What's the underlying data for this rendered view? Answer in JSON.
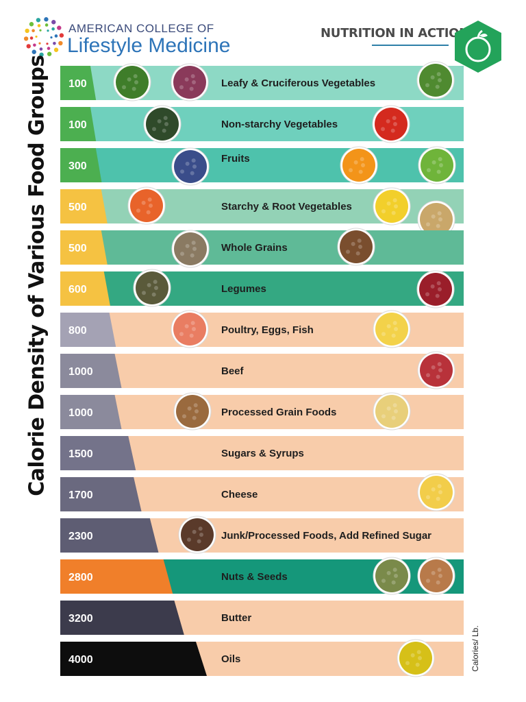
{
  "header": {
    "org_line1": "AMERICAN COLLEGE OF",
    "org_line2": "Lifestyle Medicine",
    "section_title": "NUTRITION IN ACTION",
    "badge_icon": "apple-icon",
    "logo_icon": "dotted-circle-logo"
  },
  "chart_data": {
    "type": "bar",
    "title": "Calorie Density of Various Food Groups",
    "unit_label": "Calories/ Lb.",
    "categories": [
      "Leafy & Cruciferous Vegetables",
      "Non-starchy Vegetables",
      "Fruits",
      "Starchy & Root Vegetables",
      "Whole Grains",
      "Legumes",
      "Poultry, Eggs, Fish",
      "Beef",
      "Processed Grain Foods",
      "Sugars & Syrups",
      "Cheese",
      "Junk/Processed Foods, Add Refined Sugar",
      "Nuts & Seeds",
      "Butter",
      "Oils"
    ],
    "values": [
      100,
      100,
      300,
      500,
      500,
      600,
      800,
      1000,
      1000,
      1500,
      1700,
      2300,
      2800,
      3200,
      4000
    ],
    "value_colors": [
      "#4caf50",
      "#4caf50",
      "#4caf50",
      "#f5c242",
      "#f5c242",
      "#f5c242",
      "#a4a2b4",
      "#8b8a9c",
      "#8b8a9c",
      "#74738a",
      "#6a697f",
      "#5e5d73",
      "#f07f2a",
      "#3c3b4c",
      "#0d0d0d"
    ],
    "band_colors": [
      "#8dd9c5",
      "#6fd0bd",
      "#4ec2ac",
      "#93d2b6",
      "#5fba97",
      "#34a882",
      "#f8ccaa",
      "#f8ccaa",
      "#f8ccaa",
      "#f8ccaa",
      "#f8ccaa",
      "#f8ccaa",
      "#15977a",
      "#f8ccaa",
      "#f8ccaa"
    ],
    "food_icons": [
      [
        "broccoli-icon",
        "kale-salad-icon",
        "green-leaf-icon"
      ],
      [
        "zucchini-icon",
        "tomato-icon"
      ],
      [
        "blueberries-icon",
        "orange-icon",
        "kiwi-icon"
      ],
      [
        "carrots-icon",
        "corn-icon",
        "potatoes-icon"
      ],
      [
        "wild-rice-icon",
        "grain-mix-icon"
      ],
      [
        "lentils-icon",
        "kidney-beans-icon"
      ],
      [
        "salmon-icon",
        "fried-eggs-icon"
      ],
      [
        "steak-icon"
      ],
      [
        "cereal-icon",
        "pasta-icon"
      ],
      [],
      [
        "swiss-cheese-icon"
      ],
      [
        "soda-icon"
      ],
      [
        "pumpkin-seeds-icon",
        "almonds-icon"
      ],
      [],
      [
        "olive-oil-icon"
      ]
    ],
    "icon_colors": {
      "broccoli-icon": "#3f7d2a",
      "kale-salad-icon": "#8a3a5a",
      "green-leaf-icon": "#4f8a30",
      "zucchini-icon": "#2f4a2a",
      "tomato-icon": "#d42a1e",
      "blueberries-icon": "#3a4d8a",
      "orange-icon": "#f39419",
      "kiwi-icon": "#6fb43a",
      "carrots-icon": "#e8632a",
      "corn-icon": "#f2cf2b",
      "potatoes-icon": "#c9a76a",
      "wild-rice-icon": "#8a7a62",
      "grain-mix-icon": "#7a4e2e",
      "lentils-icon": "#5a5a3a",
      "kidney-beans-icon": "#9a1e2a",
      "salmon-icon": "#e97d62",
      "fried-eggs-icon": "#f3d24a",
      "steak-icon": "#b8323a",
      "cereal-icon": "#9a6a3e",
      "pasta-icon": "#e8cf7a",
      "swiss-cheese-icon": "#f2cd4a",
      "soda-icon": "#5a3a2a",
      "pumpkin-seeds-icon": "#7a8a4a",
      "almonds-icon": "#b87a4a",
      "olive-oil-icon": "#d6c018"
    }
  }
}
